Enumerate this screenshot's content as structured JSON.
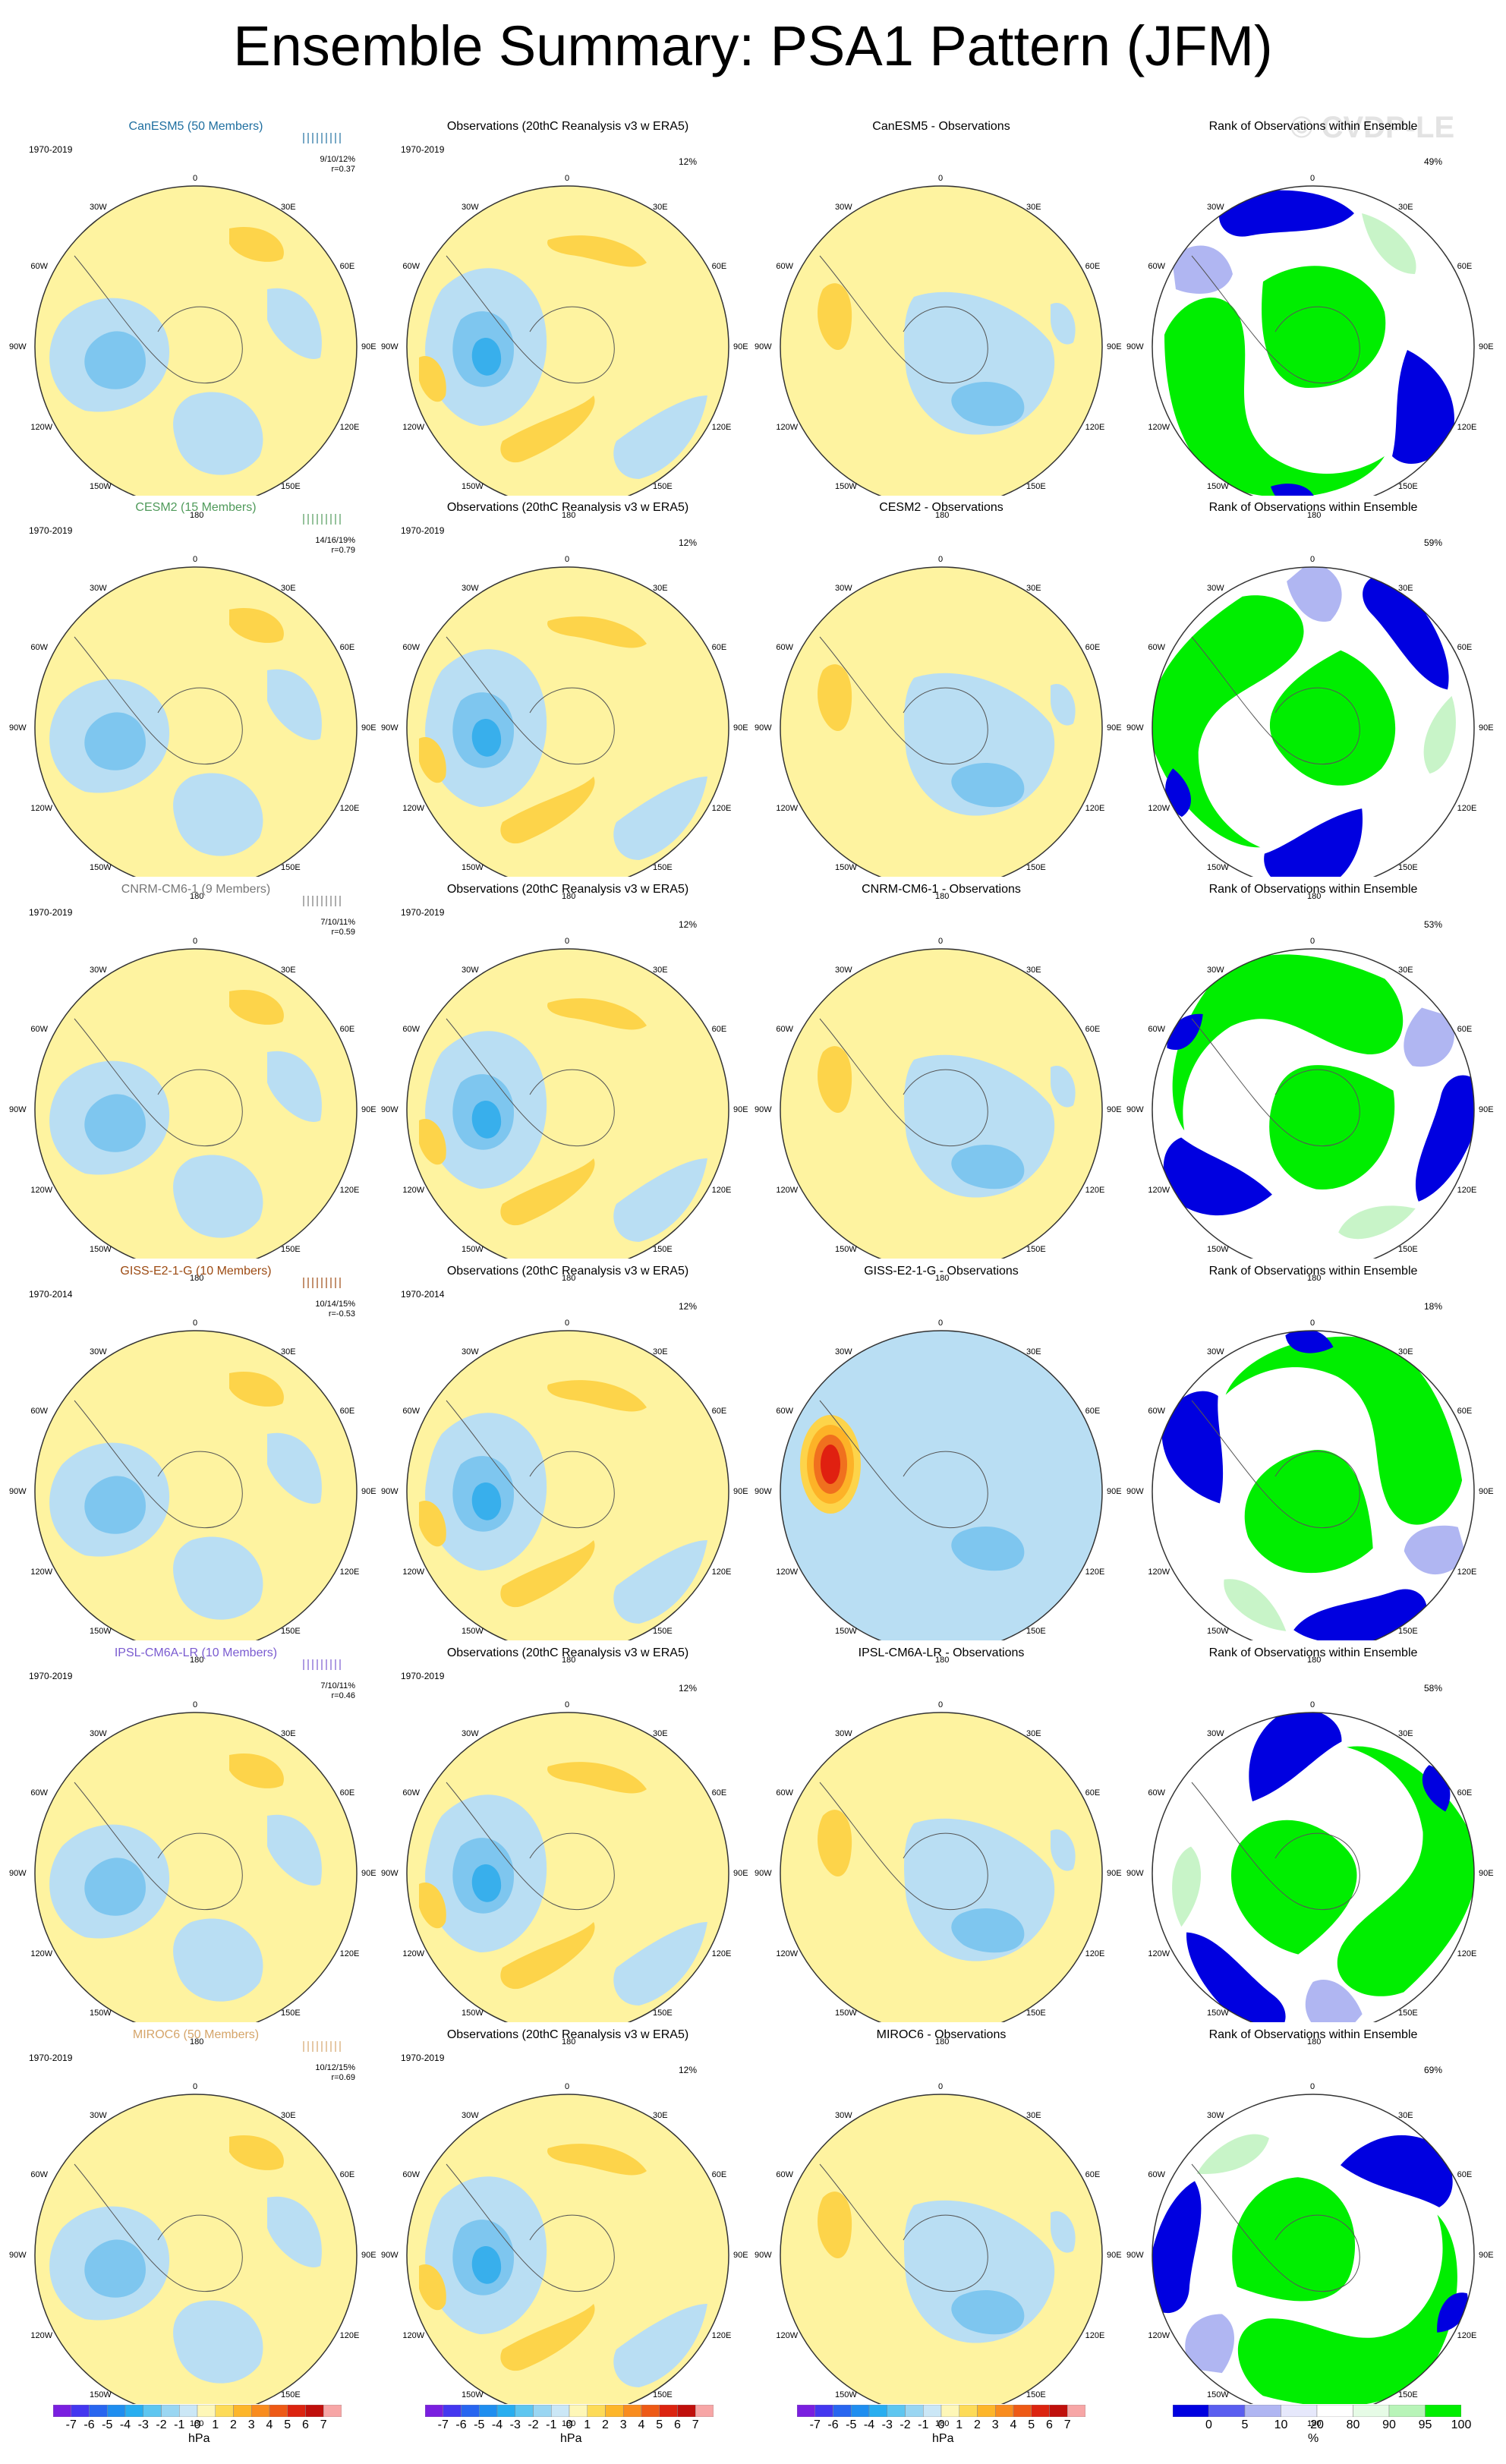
{
  "title": "Ensemble Summary: PSA1 Pattern (JFM)",
  "watermark": "© CVDP-LE",
  "colors": {
    "model_title": {
      "CanESM5": "#1f6fa0",
      "CESM2": "#4f9a5a",
      "CNRM-CM6-1": "#777777",
      "GISS-E2-1-G": "#9c4a12",
      "IPSL-CM6A-LR": "#7a5bd0",
      "MIROC6": "#d5a56a"
    },
    "pos1": "#fef3a0",
    "pos2": "#fdd44a",
    "pos3": "#fdb227",
    "pos4": "#f0701e",
    "pos5": "#e02010",
    "neg1": "#b9def3",
    "neg2": "#7ec6ef",
    "neg3": "#38afec",
    "neg4": "#0d8be8",
    "rank_blue": "#0000e0",
    "rank_lightblue": "#b0b6f2",
    "rank_green": "#00ee00",
    "rank_lightgreen": "#c8f4c8"
  },
  "rows": [
    {
      "model": "CanESM5",
      "members": "CanESM5 (50 Members)",
      "period": "1970-2019",
      "stats": [
        "9/10/12%",
        "r=0.37"
      ],
      "obs_title": "Observations (20thC Reanalysis v3 w ERA5)",
      "obs_period": "1970-2019",
      "obs_pct": "12%",
      "diff_title": "CanESM5 - Observations",
      "rank_title": "Rank of Observations within Ensemble",
      "rank_pct": "49%"
    },
    {
      "model": "CESM2",
      "members": "CESM2 (15 Members)",
      "period": "1970-2019",
      "stats": [
        "14/16/19%",
        "r=0.79"
      ],
      "obs_title": "Observations (20thC Reanalysis v3 w ERA5)",
      "obs_period": "1970-2019",
      "obs_pct": "12%",
      "diff_title": "CESM2 - Observations",
      "rank_title": "Rank of Observations within Ensemble",
      "rank_pct": "59%"
    },
    {
      "model": "CNRM-CM6-1",
      "members": "CNRM-CM6-1 (9 Members)",
      "period": "1970-2019",
      "stats": [
        "7/10/11%",
        "r=0.59"
      ],
      "obs_title": "Observations (20thC Reanalysis v3 w ERA5)",
      "obs_period": "1970-2019",
      "obs_pct": "12%",
      "diff_title": "CNRM-CM6-1 - Observations",
      "rank_title": "Rank of Observations within Ensemble",
      "rank_pct": "53%"
    },
    {
      "model": "GISS-E2-1-G",
      "members": "GISS-E2-1-G (10 Members)",
      "period": "1970-2014",
      "stats": [
        "10/14/15%",
        "r=-0.53"
      ],
      "obs_title": "Observations (20thC Reanalysis v3 w ERA5)",
      "obs_period": "1970-2014",
      "obs_pct": "12%",
      "diff_title": "GISS-E2-1-G - Observations",
      "rank_title": "Rank of Observations within Ensemble",
      "rank_pct": "18%"
    },
    {
      "model": "IPSL-CM6A-LR",
      "members": "IPSL-CM6A-LR (10 Members)",
      "period": "1970-2019",
      "stats": [
        "7/10/11%",
        "r=0.46"
      ],
      "obs_title": "Observations (20thC Reanalysis v3 w ERA5)",
      "obs_period": "1970-2019",
      "obs_pct": "12%",
      "diff_title": "IPSL-CM6A-LR - Observations",
      "rank_title": "Rank of Observations within Ensemble",
      "rank_pct": "58%"
    },
    {
      "model": "MIROC6",
      "members": "MIROC6 (50 Members)",
      "period": "1970-2019",
      "stats": [
        "10/12/15%",
        "r=0.69"
      ],
      "obs_title": "Observations (20thC Reanalysis v3 w ERA5)",
      "obs_period": "1970-2019",
      "obs_pct": "12%",
      "diff_title": "MIROC6 - Observations",
      "rank_title": "Rank of Observations within Ensemble",
      "rank_pct": "69%"
    }
  ],
  "map_labels": {
    "top": "0",
    "bottom": "180",
    "left": [
      "30W",
      "60W",
      "90W",
      "120W",
      "150W"
    ],
    "right": [
      "30E",
      "60E",
      "90E",
      "120E",
      "150E"
    ]
  },
  "colorbar_hpa": {
    "ticks": [
      "-7",
      "-6",
      "-5",
      "-4",
      "-3",
      "-2",
      "-1",
      "0",
      "1",
      "2",
      "3",
      "4",
      "5",
      "6",
      "7"
    ],
    "unit": "hPa",
    "colors": [
      "#7a1fe0",
      "#4437f0",
      "#2866f0",
      "#1f8ef0",
      "#28aef0",
      "#5ec6f0",
      "#9ad6f2",
      "#cbe7f6",
      "#fef7b8",
      "#fddb58",
      "#fdb62a",
      "#f98c1e",
      "#ee5a16",
      "#dc2410",
      "#c0100c",
      "#f7a6a6"
    ]
  },
  "colorbar_rank": {
    "ticks": [
      "0",
      "5",
      "10",
      "20",
      "80",
      "90",
      "95",
      "100"
    ],
    "unit": "%",
    "colors": [
      "#0000e0",
      "#5a5ef0",
      "#b0b6f2",
      "#e6e8fb",
      "#ffffff",
      "#e6fbe6",
      "#b8f4b8",
      "#00ee00"
    ]
  }
}
